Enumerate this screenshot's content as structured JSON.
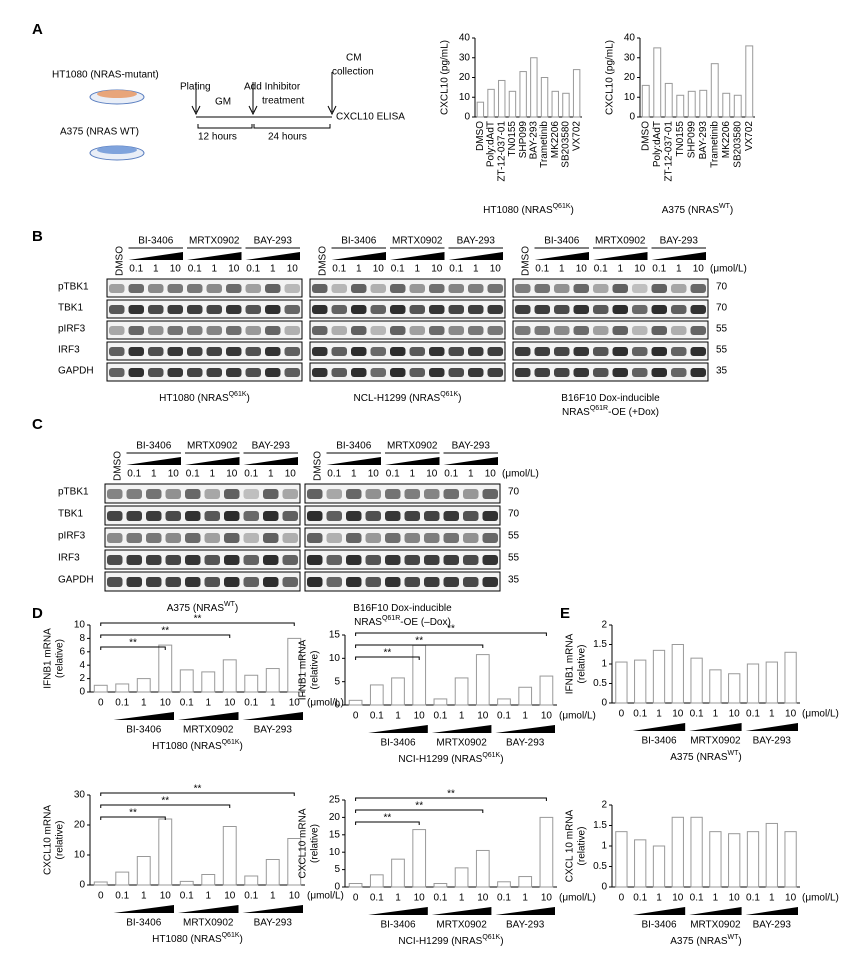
{
  "panel_labels": [
    "A",
    "B",
    "C",
    "D",
    "E"
  ],
  "schematic": {
    "cell_lines": [
      "HT1080 (NRAS-mutant)",
      "A375 (NRAS WT)"
    ],
    "steps": [
      "Plating",
      "GM",
      "Add Inhibitor",
      "treatment",
      "CM",
      "collection",
      "CXCL10 ELISA"
    ],
    "durations": [
      "12 hours",
      "24 hours"
    ]
  },
  "blots": [
    {
      "dmso": "DMSO",
      "drugs": [
        "BI-3406",
        "MRTX0902",
        "BAY-293"
      ],
      "doses": [
        "0.1",
        "1",
        "10"
      ],
      "unit": "(μmol/L)",
      "rows": [
        "pTBK1",
        "TBK1",
        "pIRF3",
        "IRF3",
        "GAPDH"
      ],
      "mw": [
        "70",
        "70",
        "55",
        "55",
        "35"
      ],
      "captions": [
        [
          [
            "HT1080 (NRAS",
            "Q61K",
            ")"
          ]
        ],
        [
          [
            "NCL-H1299 (NRAS",
            "Q61K",
            ")"
          ]
        ],
        [
          [
            "B16F10 Dox-inducible"
          ],
          [
            "NRAS",
            "Q61R",
            "-OE (+Dox)"
          ]
        ]
      ]
    },
    {
      "dmso": "DMSO",
      "drugs": [
        "BI-3406",
        "MRTX0902",
        "BAY-293"
      ],
      "doses": [
        "0.1",
        "1",
        "10"
      ],
      "unit": "(μmol/L)",
      "rows": [
        "pTBK1",
        "TBK1",
        "pIRF3",
        "IRF3",
        "GAPDH"
      ],
      "mw": [
        "70",
        "70",
        "55",
        "55",
        "35"
      ],
      "captions": [
        [
          [
            "A375 (NRAS",
            "WT",
            ")"
          ]
        ],
        [
          [
            "B16F10 Dox-inducible"
          ],
          [
            "NRAS",
            "Q61R",
            "-OE (–Dox)"
          ]
        ]
      ]
    }
  ],
  "chart_data": [
    {
      "type": "bar",
      "ylabel": [
        "CXCL10 (pg/mL)"
      ],
      "xlabel": [
        "HT1080 (NRAS",
        "Q61K",
        ")"
      ],
      "categories": [
        "DMSO",
        "Poly:dAdT",
        "ZT-12-037-01",
        "TN0155",
        "SHP099",
        "BAY-293",
        "Trametinib",
        "MK2206",
        "SB203580",
        "VX702"
      ],
      "category_colors": [
        "#000000",
        "#000000",
        "#000000",
        "#000000",
        "#000000",
        "#e02020",
        "#000000",
        "#000000",
        "#000000",
        "#000000"
      ],
      "values": [
        7.5,
        14,
        18.5,
        13,
        23,
        30,
        20,
        13,
        12,
        24
      ],
      "color": "#ffffff",
      "edge_color": "#999999",
      "ylim": [
        0,
        40
      ],
      "yticks": [
        0,
        10,
        20,
        30,
        40
      ]
    },
    {
      "type": "bar",
      "ylabel": [
        "CXCL10 (pg/mL)"
      ],
      "xlabel": [
        "A375 (NRAS",
        "WT",
        ")"
      ],
      "categories": [
        "DMSO",
        "Poly:dAdT",
        "ZT-12-037-01",
        "TN0155",
        "SHP099",
        "BAY-293",
        "Trametinib",
        "MK2206",
        "SB203580",
        "VX702"
      ],
      "category_colors": [
        "#000000",
        "#000000",
        "#000000",
        "#000000",
        "#000000",
        "#e02020",
        "#000000",
        "#000000",
        "#000000",
        "#000000"
      ],
      "values": [
        16,
        35,
        17,
        11,
        13,
        13.5,
        27,
        12,
        11,
        36
      ],
      "color": "#ffffff",
      "edge_color": "#999999",
      "ylim": [
        0,
        40
      ],
      "yticks": [
        0,
        10,
        20,
        30,
        40
      ]
    },
    {
      "type": "bar",
      "ylabel": [
        "IFNB1 mRNA",
        "(relative)"
      ],
      "xlabel": [
        "HT1080 (NRAS",
        "Q61K",
        ")"
      ],
      "categories": [
        "0",
        "0.1",
        "1",
        "10",
        "0.1",
        "1",
        "10",
        "0.1",
        "1",
        "10"
      ],
      "groups": [
        "BI-3406",
        "MRTX0902",
        "BAY-293"
      ],
      "unit": "(μmol/L)",
      "values": [
        1,
        1.2,
        2,
        7,
        3.3,
        3,
        4.8,
        2.5,
        3.5,
        8
      ],
      "annotations": [
        "**",
        "**",
        "**"
      ],
      "color": "#ffffff",
      "edge_color": "#999999",
      "ylim": [
        0,
        10
      ],
      "yticks": [
        0,
        2,
        4,
        6,
        8,
        10
      ]
    },
    {
      "type": "bar",
      "ylabel": [
        "IFNB1 mRNA",
        "(relative)"
      ],
      "xlabel": [
        "NCI-H1299 (NRAS",
        "Q61K",
        ")"
      ],
      "categories": [
        "0",
        "0.1",
        "1",
        "10",
        "0.1",
        "1",
        "10",
        "0.1",
        "1",
        "10"
      ],
      "groups": [
        "BI-3406",
        "MRTX0902",
        "BAY-293"
      ],
      "unit": "(μmol/L)",
      "values": [
        1,
        4.3,
        5.8,
        12.8,
        1.3,
        5.8,
        10.8,
        1.3,
        3.8,
        6.2
      ],
      "annotations": [
        "**",
        "**",
        "**"
      ],
      "color": "#ffffff",
      "edge_color": "#999999",
      "ylim": [
        0,
        15
      ],
      "yticks": [
        0,
        5,
        10,
        15
      ]
    },
    {
      "type": "bar",
      "ylabel": [
        "IFNB1 mRNA",
        "(relative)"
      ],
      "xlabel": [
        "A375 (NRAS",
        "WT",
        ")"
      ],
      "categories": [
        "0",
        "0.1",
        "1",
        "10",
        "0.1",
        "1",
        "10",
        "0.1",
        "1",
        "10"
      ],
      "groups": [
        "BI-3406",
        "MRTX0902",
        "BAY-293"
      ],
      "unit": "(μmol/L)",
      "values": [
        1.05,
        1.1,
        1.35,
        1.5,
        1.15,
        0.85,
        0.75,
        1.0,
        1.05,
        1.3
      ],
      "color": "#ffffff",
      "edge_color": "#999999",
      "ylim": [
        0,
        2
      ],
      "yticks": [
        0,
        0.5,
        1,
        1.5,
        2
      ]
    },
    {
      "type": "bar",
      "ylabel": [
        "CXCL10 mRNA",
        "(relative)"
      ],
      "xlabel": [
        "HT1080 (NRAS",
        "Q61K",
        ")"
      ],
      "categories": [
        "0",
        "0.1",
        "1",
        "10",
        "0.1",
        "1",
        "10",
        "0.1",
        "1",
        "10"
      ],
      "groups": [
        "BI-3406",
        "MRTX0902",
        "BAY-293"
      ],
      "unit": "(μmol/L)",
      "values": [
        1,
        4.3,
        9.5,
        22,
        1.2,
        3.5,
        19.5,
        3,
        8.5,
        15.5
      ],
      "annotations": [
        "**",
        "**",
        "**"
      ],
      "color": "#ffffff",
      "edge_color": "#999999",
      "ylim": [
        0,
        30
      ],
      "yticks": [
        0,
        10,
        20,
        30
      ]
    },
    {
      "type": "bar",
      "ylabel": [
        "CXCL10 mRNA",
        "(relative)"
      ],
      "xlabel": [
        "NCI-H1299 (NRAS",
        "Q61K",
        ")"
      ],
      "categories": [
        "0",
        "0.1",
        "1",
        "10",
        "0.1",
        "1",
        "10",
        "0.1",
        "1",
        "10"
      ],
      "groups": [
        "BI-3406",
        "MRTX0902",
        "BAY-293"
      ],
      "unit": "(μmol/L)",
      "values": [
        1,
        3.5,
        8,
        16.5,
        1,
        5.5,
        10.5,
        1.5,
        3,
        20
      ],
      "annotations": [
        "**",
        "**",
        "**"
      ],
      "color": "#ffffff",
      "edge_color": "#999999",
      "ylim": [
        0,
        25
      ],
      "yticks": [
        0,
        5,
        10,
        15,
        20,
        25
      ]
    },
    {
      "type": "bar",
      "ylabel": [
        "CXCL 10 mRNA",
        "(relative)"
      ],
      "xlabel": [
        "A375 (NRAS",
        "WT",
        ")"
      ],
      "categories": [
        "0",
        "0.1",
        "1",
        "10",
        "0.1",
        "1",
        "10",
        "0.1",
        "1",
        "10"
      ],
      "groups": [
        "BI-3406",
        "MRTX0902",
        "BAY-293"
      ],
      "unit": "(μmol/L)",
      "values": [
        1.35,
        1.15,
        1.0,
        1.7,
        1.7,
        1.35,
        1.3,
        1.35,
        1.55,
        1.35
      ],
      "color": "#ffffff",
      "edge_color": "#999999",
      "ylim": [
        0,
        2
      ],
      "yticks": [
        0,
        0.5,
        1,
        1.5,
        2
      ]
    }
  ]
}
